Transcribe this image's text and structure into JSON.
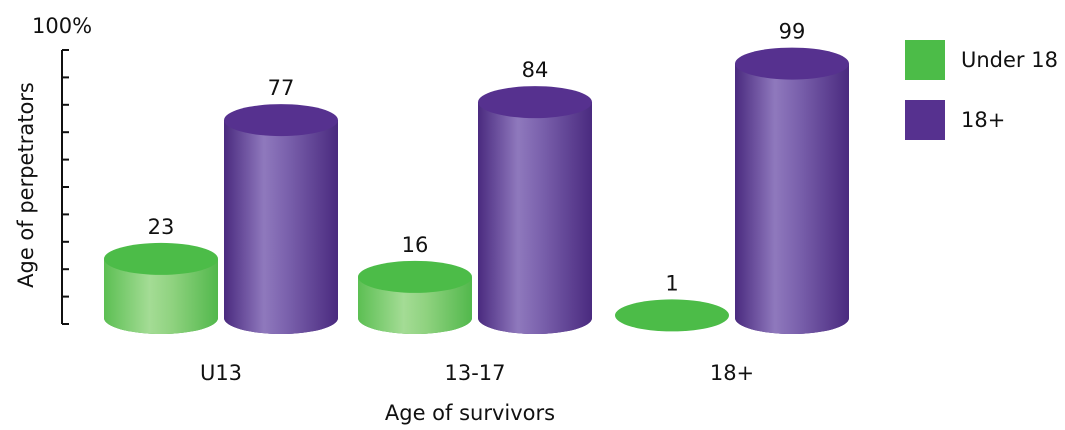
{
  "chart_data": {
    "type": "bar",
    "title": "",
    "ylabel": "Age of perpetrators",
    "xlabel": "Age of survivors",
    "ytop_label": "100%",
    "ylim": [
      0,
      100
    ],
    "grid": false,
    "legend_position": "right",
    "categories": [
      "U13",
      "13-17",
      "18+"
    ],
    "series": [
      {
        "name": "Under 18",
        "color": "#4cbc48",
        "values": [
          23,
          16,
          1
        ]
      },
      {
        "name": "18+",
        "color": "#56318f",
        "values": [
          77,
          84,
          99
        ]
      }
    ],
    "data_labels": [
      [
        "23",
        "16",
        "1"
      ],
      [
        "77",
        "84",
        "99"
      ]
    ]
  }
}
